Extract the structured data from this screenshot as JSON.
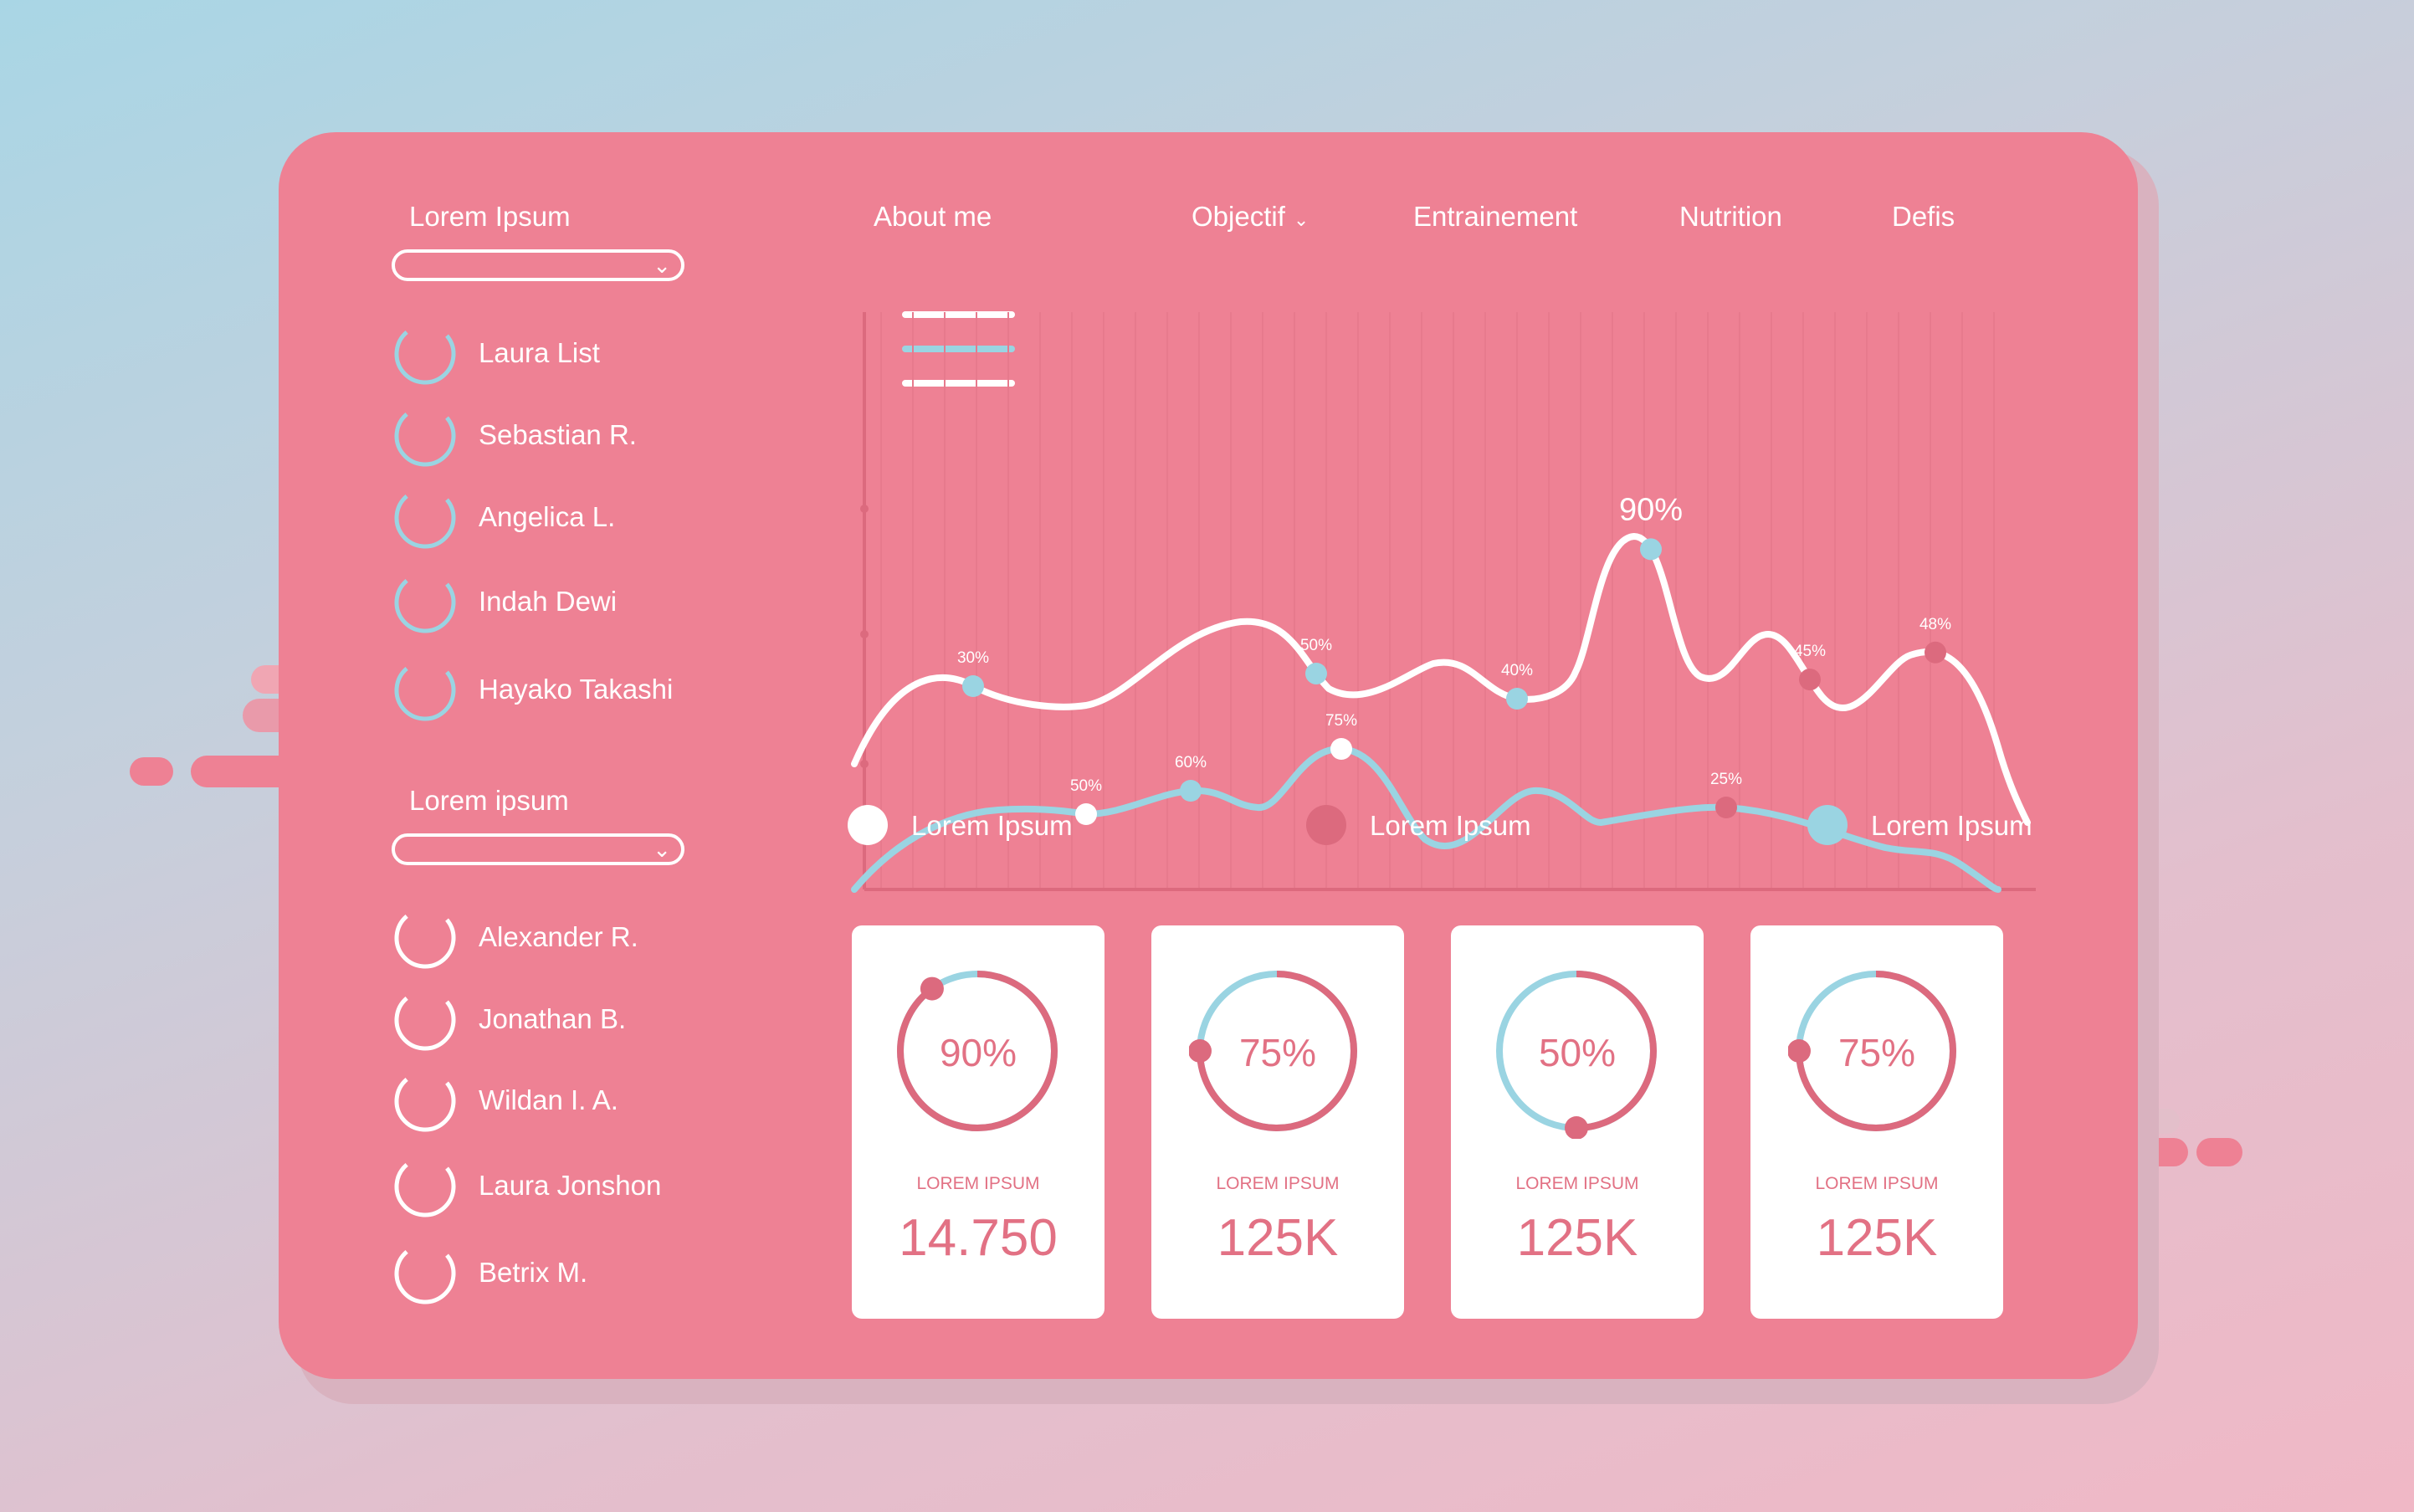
{
  "colors": {
    "panel": "#ee8194",
    "accent_blue": "#9ad4e2",
    "accent_rose": "#dc6a7e",
    "white": "#ffffff",
    "card_text": "#e27184"
  },
  "sidebar": {
    "group1": {
      "title": "Lorem Ipsum",
      "people": [
        "Laura List",
        "Sebastian R.",
        "Angelica L.",
        "Indah Dewi",
        "Hayako Takashi"
      ]
    },
    "group2": {
      "title": "Lorem ipsum",
      "people": [
        "Alexander R.",
        "Jonathan B.",
        "Wildan I. A.",
        "Laura Jonshon",
        "Betrix M."
      ]
    }
  },
  "icons": {
    "dropdown": "chevron-down-icon",
    "menu": "hamburger-menu-icon",
    "person": "progress-ring-icon"
  },
  "nav": {
    "items": [
      "About me",
      "Objectif",
      "Entrainement",
      "Nutrition",
      "Defis"
    ],
    "dropdown_item": "Objectif"
  },
  "legend": [
    {
      "label": "Lorem Ipsum",
      "color": "#ffffff"
    },
    {
      "label": "Lorem Ipsum",
      "color": "#dc6a7e"
    },
    {
      "label": "Lorem Ipsum",
      "color": "#9ad4e2"
    }
  ],
  "chart_data": {
    "type": "line",
    "grid": true,
    "series": [
      {
        "color": "#ffffff",
        "labels": [
          "30%",
          "50%",
          "40%",
          "90%",
          "45%",
          "48%"
        ]
      },
      {
        "color": "#9ad4e2",
        "labels": [
          "50%",
          "60%",
          "75%",
          "25%"
        ]
      }
    ]
  },
  "cards": [
    {
      "percent": "90%",
      "fraction": 0.9,
      "label": "LOREM IPSUM",
      "value": "14.750"
    },
    {
      "percent": "75%",
      "fraction": 0.75,
      "label": "LOREM IPSUM",
      "value": "125K"
    },
    {
      "percent": "50%",
      "fraction": 0.5,
      "label": "LOREM IPSUM",
      "value": "125K"
    },
    {
      "percent": "75%",
      "fraction": 0.75,
      "label": "LOREM IPSUM",
      "value": "125K"
    }
  ]
}
